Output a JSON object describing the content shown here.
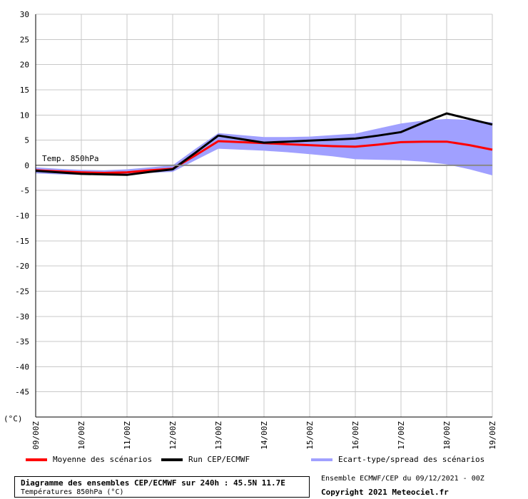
{
  "chart_data": {
    "type": "line",
    "title": "Diagramme des ensembles CEP/ECMWF sur 240h : 45.5N 11.7E",
    "subtitle": "Températures 850hPa (°C)",
    "inner_label": "Temp. 850hPa",
    "ylabel": "(°C)",
    "ylim": [
      -50,
      30
    ],
    "yticks": [
      30,
      25,
      20,
      15,
      10,
      5,
      0,
      -5,
      -10,
      -15,
      -20,
      -25,
      -30,
      -35,
      -40,
      -45
    ],
    "x": [
      0,
      12,
      24,
      36,
      48,
      60,
      72,
      84,
      96,
      108,
      120,
      132,
      144,
      156,
      168,
      180,
      192,
      204,
      216,
      228,
      240
    ],
    "xticks": [
      "09/00Z",
      "10/00Z",
      "11/00Z",
      "12/00Z",
      "13/00Z",
      "14/00Z",
      "15/00Z",
      "16/00Z",
      "17/00Z",
      "18/00Z",
      "19/00Z"
    ],
    "grid": true,
    "series": [
      {
        "name": "Moyenne des scénarios",
        "color": "#ff0000",
        "values": [
          -1.0,
          -1.2,
          -1.4,
          -1.5,
          -1.4,
          -1.0,
          -0.7,
          2.0,
          4.8,
          4.6,
          4.4,
          4.2,
          4.0,
          3.8,
          3.7,
          4.1,
          4.6,
          4.7,
          4.7,
          4.0,
          3.1
        ]
      },
      {
        "name": "Run CEP/ECMWF",
        "color": "#000000",
        "values": [
          -1.1,
          -1.4,
          -1.7,
          -1.8,
          -1.9,
          -1.3,
          -0.8,
          2.5,
          5.9,
          5.2,
          4.5,
          4.7,
          4.9,
          5.1,
          5.3,
          5.9,
          6.6,
          8.5,
          10.3,
          9.2,
          8.1
        ]
      },
      {
        "name": "Ecart-type/spread des scénarios",
        "color": "#a0a0ff",
        "type": "area",
        "lower": [
          -1.6,
          -1.8,
          -1.9,
          -1.8,
          -1.7,
          -1.5,
          -1.3,
          1.0,
          3.3,
          3.1,
          2.9,
          2.6,
          2.2,
          1.8,
          1.2,
          1.1,
          1.0,
          0.7,
          0.2,
          -0.8,
          -2.0
        ],
        "upper": [
          -0.4,
          -0.7,
          -0.9,
          -1.0,
          -0.8,
          -0.4,
          0.0,
          3.3,
          6.4,
          6.0,
          5.6,
          5.6,
          5.7,
          6.0,
          6.3,
          7.3,
          8.3,
          8.9,
          9.2,
          9.0,
          8.5
        ]
      }
    ]
  },
  "legend": {
    "mean_label": "Moyenne des scénarios",
    "run_label": "Run CEP/ECMWF",
    "spread_label": "Ecart-type/spread des scénarios"
  },
  "footer": {
    "title": "Diagramme des ensembles CEP/ECMWF sur 240h : 45.5N 11.7E",
    "subtitle": "Températures 850hPa (°C)",
    "run_info": "Ensemble ECMWF/CEP du 09/12/2021 - 00Z",
    "copyright": "Copyright 2021 Meteociel.fr"
  },
  "colors": {
    "mean": "#ff0000",
    "run": "#000000",
    "spread": "#a0a0ff",
    "grid": "#c8c8c8"
  }
}
